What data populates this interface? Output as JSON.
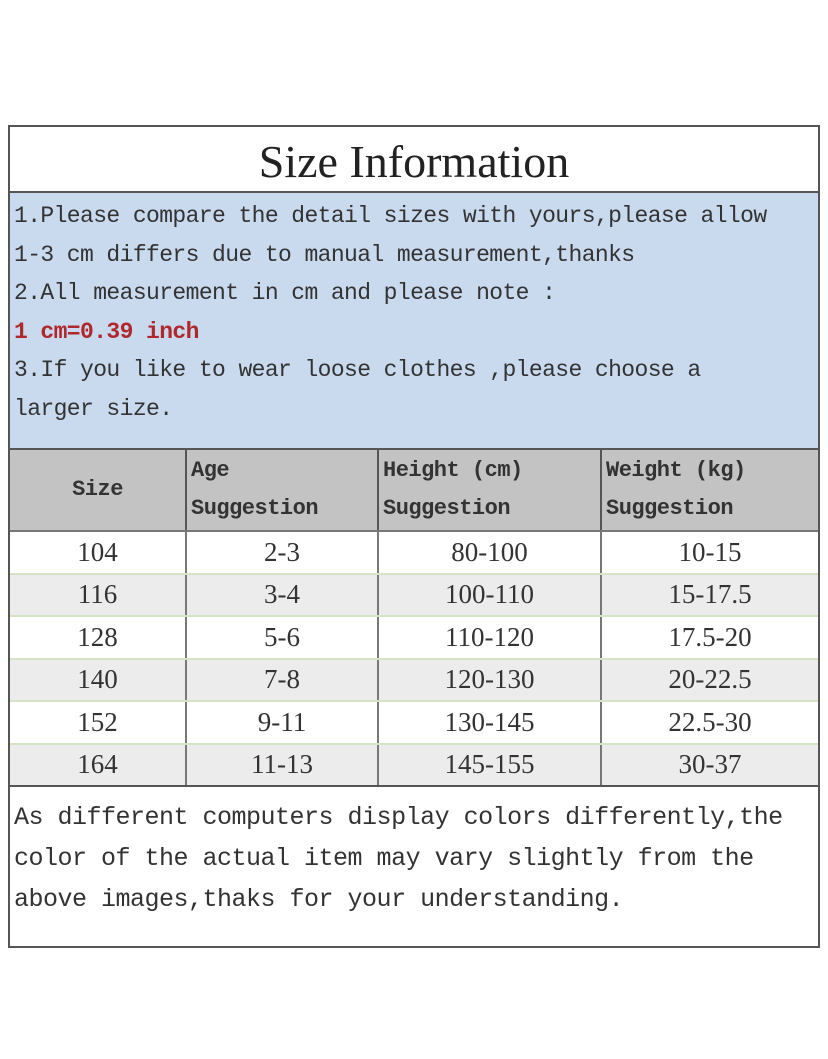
{
  "title": "Size Information",
  "notes": [
    "1.Please compare the detail sizes with yours,please allow",
    "1-3 cm differs due to manual measurement,thanks",
    "2.All measurement in cm and please note :",
    "1 cm=0.39 inch",
    "3.If you like to wear loose clothes ,please choose a",
    "larger size."
  ],
  "highlight_color": "#b0282c",
  "table": {
    "headers": [
      {
        "line1": "Size",
        "line2": ""
      },
      {
        "line1": "Age",
        "line2": "Suggestion"
      },
      {
        "line1": "Height (cm)",
        "line2": "Suggestion"
      },
      {
        "line1": "Weight (kg)",
        "line2": "Suggestion"
      }
    ],
    "rows": [
      [
        "104",
        "2-3",
        "80-100",
        "10-15"
      ],
      [
        "116",
        "3-4",
        "100-110",
        "15-17.5"
      ],
      [
        "128",
        "5-6",
        "110-120",
        "17.5-20"
      ],
      [
        "140",
        "7-8",
        "120-130",
        "20-22.5"
      ],
      [
        "152",
        "9-11",
        "130-145",
        "22.5-30"
      ],
      [
        "164",
        "11-13",
        "145-155",
        "30-37"
      ]
    ]
  },
  "footer": "As different computers display colors differently,the color of the actual item may vary slightly from the above images,thaks for your understanding."
}
